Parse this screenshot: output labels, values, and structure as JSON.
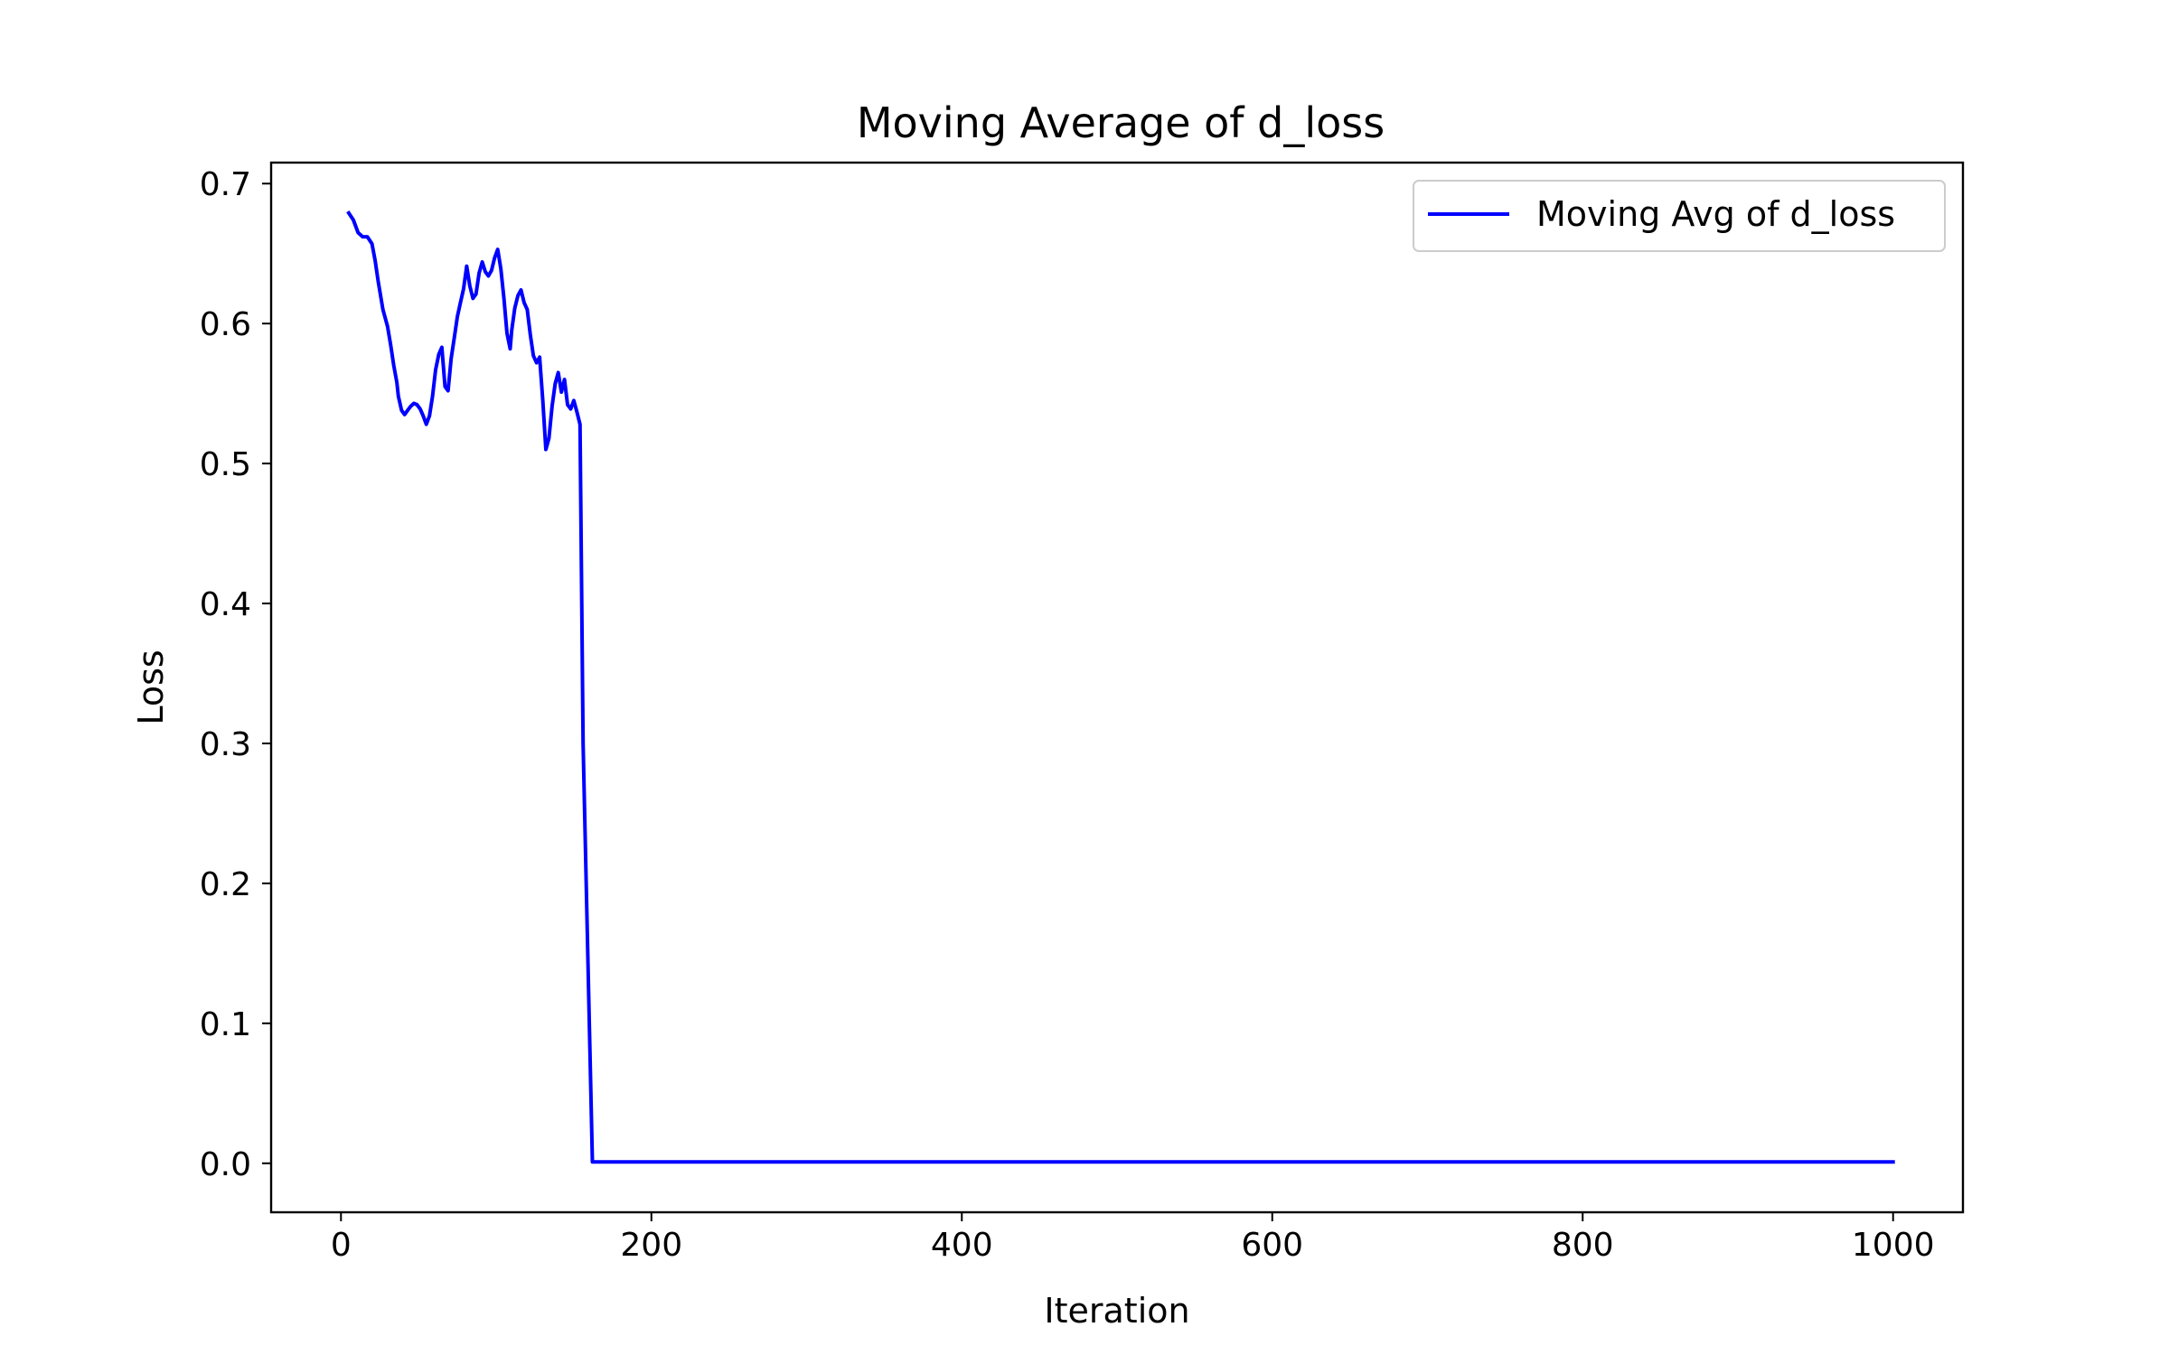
{
  "chart_data": {
    "type": "line",
    "title": "Moving Average of d_loss",
    "xlabel": "Iteration",
    "ylabel": "Loss",
    "xlim": [
      -45,
      1045
    ],
    "ylim": [
      -0.035,
      0.715
    ],
    "xticks": [
      0,
      200,
      400,
      600,
      800,
      1000
    ],
    "yticks": [
      0.0,
      0.1,
      0.2,
      0.3,
      0.4,
      0.5,
      0.6,
      0.7
    ],
    "xtick_labels": [
      "0",
      "200",
      "400",
      "600",
      "800",
      "1000"
    ],
    "ytick_labels": [
      "0.0",
      "0.1",
      "0.2",
      "0.3",
      "0.4",
      "0.5",
      "0.6",
      "0.7"
    ],
    "grid": false,
    "legend_position": "top-right",
    "series": [
      {
        "name": "Moving Avg of d_loss",
        "color": "#0000ff",
        "x": [
          5,
          8,
          11,
          14,
          17,
          20,
          22,
          24,
          27,
          30,
          32,
          34,
          36,
          37,
          39,
          41,
          43,
          45,
          47,
          49,
          51,
          53,
          55,
          57,
          59,
          61,
          63,
          65,
          67,
          69,
          71,
          73,
          75,
          77,
          79,
          81,
          83,
          85,
          87,
          89,
          91,
          93,
          95,
          97,
          99,
          101,
          103,
          105,
          107,
          109,
          110,
          112,
          114,
          116,
          118,
          120,
          122,
          124,
          126,
          128,
          130,
          132,
          134,
          136,
          138,
          140,
          142,
          144,
          146,
          148,
          150,
          152,
          154,
          156,
          162,
          200,
          400,
          600,
          800,
          1000
        ],
        "values": [
          0.679,
          0.674,
          0.665,
          0.662,
          0.662,
          0.657,
          0.645,
          0.63,
          0.61,
          0.598,
          0.585,
          0.57,
          0.558,
          0.548,
          0.538,
          0.535,
          0.538,
          0.541,
          0.543,
          0.542,
          0.539,
          0.534,
          0.528,
          0.534,
          0.548,
          0.567,
          0.578,
          0.583,
          0.555,
          0.552,
          0.575,
          0.59,
          0.605,
          0.615,
          0.625,
          0.641,
          0.627,
          0.618,
          0.621,
          0.636,
          0.644,
          0.637,
          0.634,
          0.638,
          0.647,
          0.653,
          0.639,
          0.618,
          0.593,
          0.582,
          0.595,
          0.611,
          0.62,
          0.624,
          0.615,
          0.61,
          0.592,
          0.577,
          0.572,
          0.576,
          0.545,
          0.51,
          0.518,
          0.541,
          0.557,
          0.565,
          0.551,
          0.56,
          0.542,
          0.539,
          0.545,
          0.537,
          0.528,
          0.3,
          0.001,
          0.001,
          0.001,
          0.001,
          0.001,
          0.001
        ]
      }
    ]
  }
}
